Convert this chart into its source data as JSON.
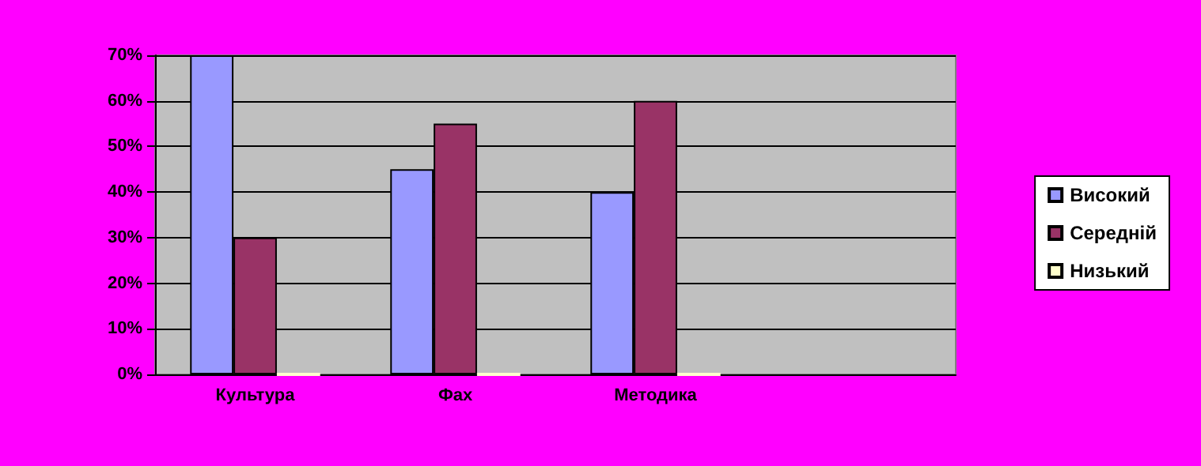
{
  "chart_data": {
    "type": "bar",
    "categories": [
      "Культура",
      "Фах",
      "Методика",
      null
    ],
    "series": [
      {
        "name": "Високий",
        "color": "#9999ff",
        "values": [
          70,
          45,
          40,
          null
        ]
      },
      {
        "name": "Середній",
        "color": "#993366",
        "values": [
          30,
          55,
          60,
          null
        ]
      },
      {
        "name": "Низький",
        "color": "#ffffcc",
        "values": [
          0,
          0,
          0,
          null
        ]
      }
    ],
    "ylim": [
      0,
      70
    ],
    "yticks": [
      {
        "value": 0,
        "label": "0%"
      },
      {
        "value": 10,
        "label": "10%"
      },
      {
        "value": 20,
        "label": "20%"
      },
      {
        "value": 30,
        "label": "30%"
      },
      {
        "value": 40,
        "label": "40%"
      },
      {
        "value": 50,
        "label": "50%"
      },
      {
        "value": 60,
        "label": "60%"
      },
      {
        "value": 70,
        "label": "70%"
      }
    ],
    "grid": "y",
    "legend": "right"
  }
}
